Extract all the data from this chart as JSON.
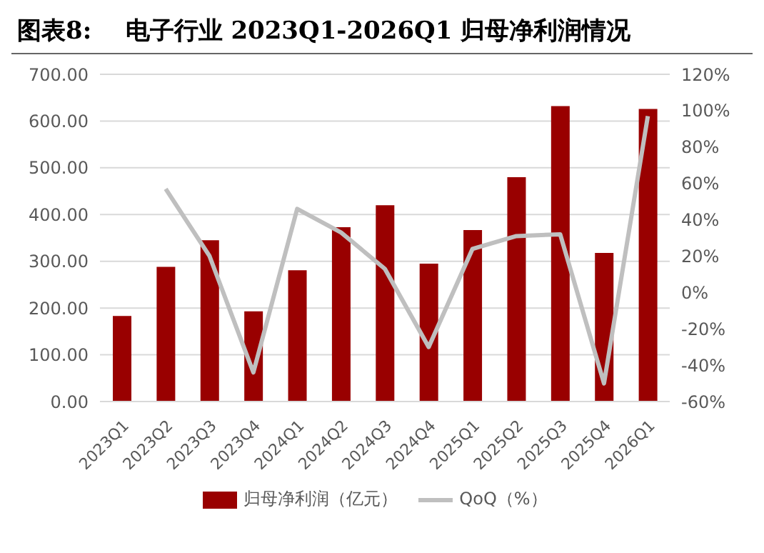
{
  "chart_data": {
    "type": "bar",
    "title": "图表8:    电子行业 2023Q1-2026Q1 归母净利润情况",
    "categories": [
      "2023Q1",
      "2023Q2",
      "2023Q3",
      "2023Q4",
      "2024Q1",
      "2024Q2",
      "2024Q3",
      "2024Q4",
      "2025Q1",
      "2025Q2",
      "2025Q3",
      "2025Q4",
      "2026Q1"
    ],
    "series": [
      {
        "name": "归母净利润（亿元）",
        "color": "#990000",
        "values": [
          183,
          288,
          345,
          193,
          281,
          373,
          420,
          295,
          367,
          480,
          632,
          318,
          626
        ]
      },
      {
        "name": "QoQ（%）",
        "type": "line",
        "axis": "y2",
        "color": "#bfbfbf",
        "values": [
          null,
          57,
          20,
          -44,
          46,
          33,
          13,
          -30,
          24,
          31,
          32,
          -50,
          97
        ]
      }
    ],
    "ylim": [
      0,
      700
    ],
    "yticks": [
      {
        "value": 0,
        "label": "0.00"
      },
      {
        "value": 100,
        "label": "100.00"
      },
      {
        "value": 200,
        "label": "200.00"
      },
      {
        "value": 300,
        "label": "300.00"
      },
      {
        "value": 400,
        "label": "400.00"
      },
      {
        "value": 500,
        "label": "500.00"
      },
      {
        "value": 600,
        "label": "600.00"
      },
      {
        "value": 700,
        "label": "700.00"
      }
    ],
    "y2lim": [
      -60,
      120
    ],
    "y2ticks": [
      {
        "value": -60,
        "label": "-60%"
      },
      {
        "value": -40,
        "label": "-40%"
      },
      {
        "value": -20,
        "label": "-20%"
      },
      {
        "value": 0,
        "label": "0%"
      },
      {
        "value": 20,
        "label": "20%"
      },
      {
        "value": 40,
        "label": "40%"
      },
      {
        "value": 60,
        "label": "60%"
      },
      {
        "value": 80,
        "label": "80%"
      },
      {
        "value": 100,
        "label": "100%"
      },
      {
        "value": 120,
        "label": "120%"
      }
    ],
    "grid": "y",
    "legend": "bottom",
    "marker": "none"
  }
}
